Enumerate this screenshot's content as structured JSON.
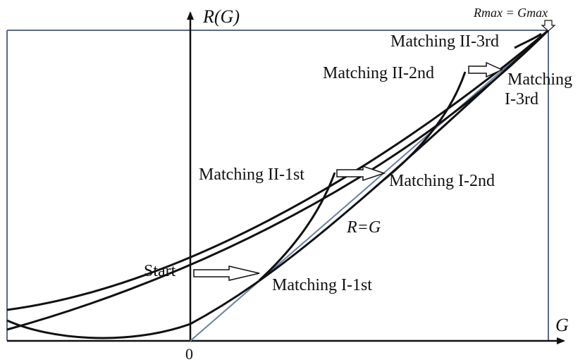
{
  "axes": {
    "y_label": "R(G)",
    "x_label": "G",
    "origin_label": "0"
  },
  "top_label": "Rmax = Gmax",
  "line_label": "R=G",
  "labels": {
    "start": "Start",
    "m_i_1st": "Matching I-1st",
    "m_i_2nd": "Matching I-2nd",
    "m_i_3rd_line1": "Matching",
    "m_i_3rd_line2": "I-3rd",
    "m_ii_1st": "Matching II-1st",
    "m_ii_2nd": "Matching II-2nd",
    "m_ii_3rd": "Matching II-3rd"
  },
  "colors": {
    "curve": "#111111",
    "frame": "#5a6b88",
    "diagonal": "#6a7fa4"
  }
}
